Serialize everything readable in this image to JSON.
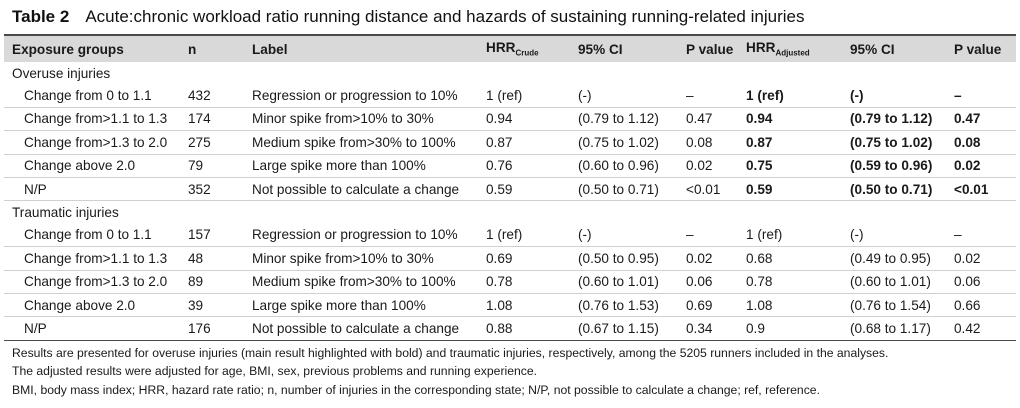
{
  "title": {
    "number": "Table 2",
    "text": "Acute:chronic workload ratio running distance and hazards of sustaining running-related injuries"
  },
  "headers": {
    "exposure": "Exposure groups",
    "n": "n",
    "label": "Label",
    "hrr": "HRR",
    "hrr_crude_sub": "Crude",
    "ci1": "95% CI",
    "p1": "P value",
    "hrr2": "HRR",
    "hrr_adj_sub": "Adjusted",
    "ci2": "95% CI",
    "p2": "P value"
  },
  "sections": [
    {
      "name": "Overuse injuries",
      "bold_adjusted": true,
      "rows": [
        {
          "group": "Change from 0 to 1.1",
          "n": "432",
          "label": "Regression or progression to 10%",
          "hrr_crude": "1 (ref)",
          "ci_crude": "(-)",
          "p_crude": "–",
          "hrr_adj": "1 (ref)",
          "ci_adj": "(-)",
          "p_adj": "–"
        },
        {
          "group": "Change from>1.1 to 1.3",
          "n": "174",
          "label": "Minor spike from>10% to 30%",
          "hrr_crude": "0.94",
          "ci_crude": "(0.79 to 1.12)",
          "p_crude": "0.47",
          "hrr_adj": "0.94",
          "ci_adj": "(0.79 to 1.12)",
          "p_adj": "0.47"
        },
        {
          "group": "Change from>1.3 to 2.0",
          "n": "275",
          "label": "Medium spike from>30% to 100%",
          "hrr_crude": "0.87",
          "ci_crude": "(0.75 to 1.02)",
          "p_crude": "0.08",
          "hrr_adj": "0.87",
          "ci_adj": "(0.75 to 1.02)",
          "p_adj": "0.08"
        },
        {
          "group": "Change above 2.0",
          "n": "79",
          "label": "Large spike more than 100%",
          "hrr_crude": "0.76",
          "ci_crude": "(0.60 to 0.96)",
          "p_crude": "0.02",
          "hrr_adj": "0.75",
          "ci_adj": "(0.59 to 0.96)",
          "p_adj": "0.02"
        },
        {
          "group": "N/P",
          "n": "352",
          "label": "Not possible to calculate a change",
          "hrr_crude": "0.59",
          "ci_crude": "(0.50 to 0.71)",
          "p_crude": "<0.01",
          "hrr_adj": "0.59",
          "ci_adj": "(0.50 to 0.71)",
          "p_adj": "<0.01"
        }
      ]
    },
    {
      "name": "Traumatic injuries",
      "bold_adjusted": false,
      "rows": [
        {
          "group": "Change from 0 to 1.1",
          "n": "157",
          "label": "Regression or progression to 10%",
          "hrr_crude": "1 (ref)",
          "ci_crude": "(-)",
          "p_crude": "–",
          "hrr_adj": "1 (ref)",
          "ci_adj": "(-)",
          "p_adj": "–"
        },
        {
          "group": "Change from>1.1 to 1.3",
          "n": "48",
          "label": "Minor spike from>10% to 30%",
          "hrr_crude": "0.69",
          "ci_crude": "(0.50 to 0.95)",
          "p_crude": "0.02",
          "hrr_adj": "0.68",
          "ci_adj": "(0.49 to 0.95)",
          "p_adj": "0.02"
        },
        {
          "group": "Change from>1.3 to 2.0",
          "n": "89",
          "label": "Medium spike from>30% to 100%",
          "hrr_crude": "0.78",
          "ci_crude": "(0.60 to 1.01)",
          "p_crude": "0.06",
          "hrr_adj": "0.78",
          "ci_adj": "(0.60 to 1.01)",
          "p_adj": "0.06"
        },
        {
          "group": "Change above 2.0",
          "n": "39",
          "label": "Large spike more than 100%",
          "hrr_crude": "1.08",
          "ci_crude": "(0.76 to 1.53)",
          "p_crude": "0.69",
          "hrr_adj": "1.08",
          "ci_adj": "(0.76 to 1.54)",
          "p_adj": "0.66"
        },
        {
          "group": "N/P",
          "n": "176",
          "label": "Not possible to calculate a change",
          "hrr_crude": "0.88",
          "ci_crude": "(0.67 to 1.15)",
          "p_crude": "0.34",
          "hrr_adj": "0.9",
          "ci_adj": "(0.68 to 1.17)",
          "p_adj": "0.42"
        }
      ]
    }
  ],
  "notes": [
    "Results are presented for overuse injuries (main result highlighted with bold) and traumatic injuries, respectively, among the 5205 runners included in the analyses.",
    "The adjusted results were adjusted for age, BMI, sex, previous problems and running experience.",
    "BMI, body mass index; HRR, hazard rate ratio; n, number of injuries in the corresponding state; N/P, not possible to calculate a change; ref, reference."
  ]
}
